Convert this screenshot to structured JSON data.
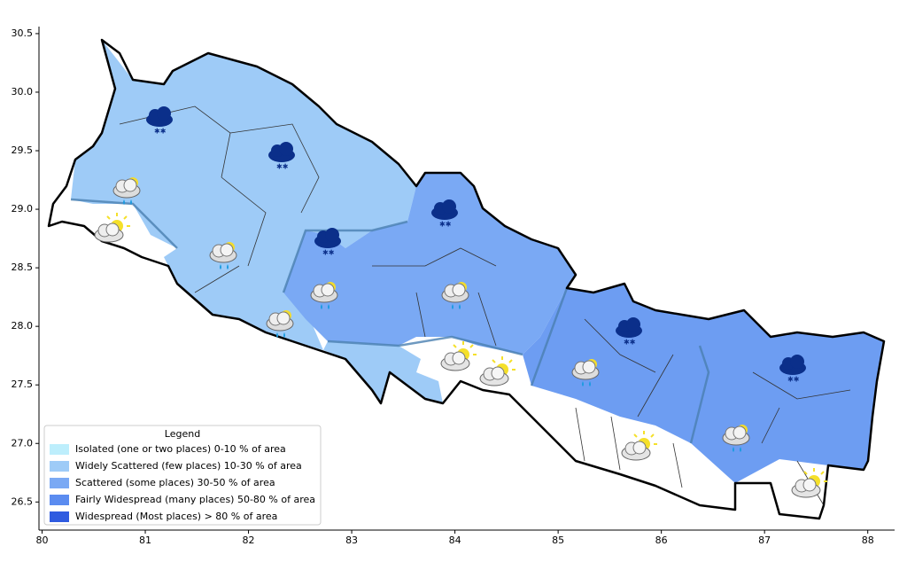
{
  "chart_data": {
    "type": "map",
    "xlim": [
      79.97,
      88.26
    ],
    "ylim": [
      26.26,
      30.56
    ],
    "xticks": [
      80,
      81,
      82,
      83,
      84,
      85,
      86,
      87,
      88
    ],
    "yticks": [
      26.5,
      {
        "value": 27,
        "label": "27.0"
      },
      27.5,
      {
        "value": 28,
        "label": "28.0"
      },
      28.5,
      {
        "value": 29,
        "label": "29.0"
      },
      29.5,
      {
        "value": 30,
        "label": "30.0"
      },
      30.5
    ],
    "legend": {
      "title": "Legend",
      "entries": [
        {
          "name": "Isolated (one or two places)  0-10 % of area",
          "color": "#bdeefc"
        },
        {
          "name": "Widely Scattered (few places)  10-30 % of area",
          "color": "#9ecbf7"
        },
        {
          "name": "Scattered (some places)  30-50 % of area",
          "color": "#7aa9f4"
        },
        {
          "name": "Fairly Widespread (many places)  50-80 % of area",
          "color": "#5b8cf0"
        },
        {
          "name": "Widespread (Most places) > 80 % of area",
          "color": "#2f5be0"
        }
      ]
    }
  }
}
